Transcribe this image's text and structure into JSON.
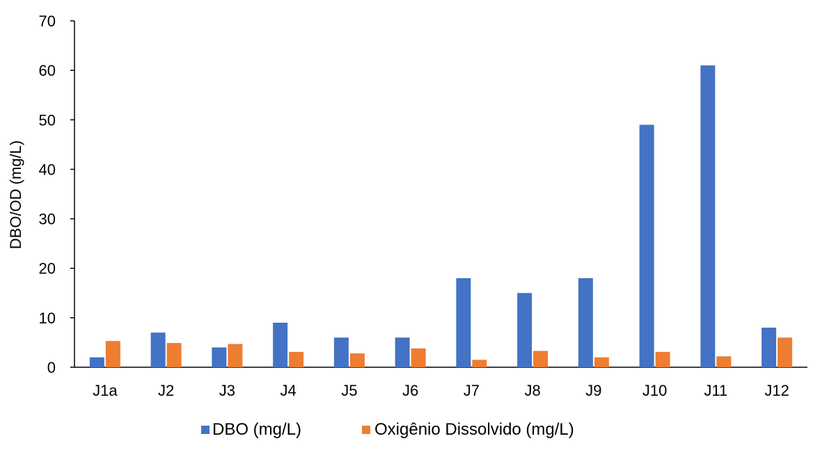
{
  "chart_data": {
    "type": "bar",
    "title": "",
    "xlabel": "",
    "ylabel": "DBO/OD (mg/L)",
    "ylim": [
      0,
      70
    ],
    "yticks": [
      0,
      10,
      20,
      30,
      40,
      50,
      60,
      70
    ],
    "grid": false,
    "legend_position": "bottom",
    "categories": [
      "J1a",
      "J2",
      "J3",
      "J4",
      "J5",
      "J6",
      "J7",
      "J8",
      "J9",
      "J10",
      "J11",
      "J12"
    ],
    "series": [
      {
        "name": "DBO (mg/L)",
        "color": "#4472C4",
        "values": [
          2,
          7,
          4,
          9,
          6,
          6,
          18,
          15,
          18,
          49,
          61,
          8
        ]
      },
      {
        "name": "Oxigênio Dissolvido (mg/L)",
        "color": "#ED7D31",
        "values": [
          5.3,
          4.9,
          4.7,
          3.1,
          2.8,
          3.8,
          1.5,
          3.3,
          2.0,
          3.1,
          2.2,
          6.0
        ]
      }
    ]
  }
}
